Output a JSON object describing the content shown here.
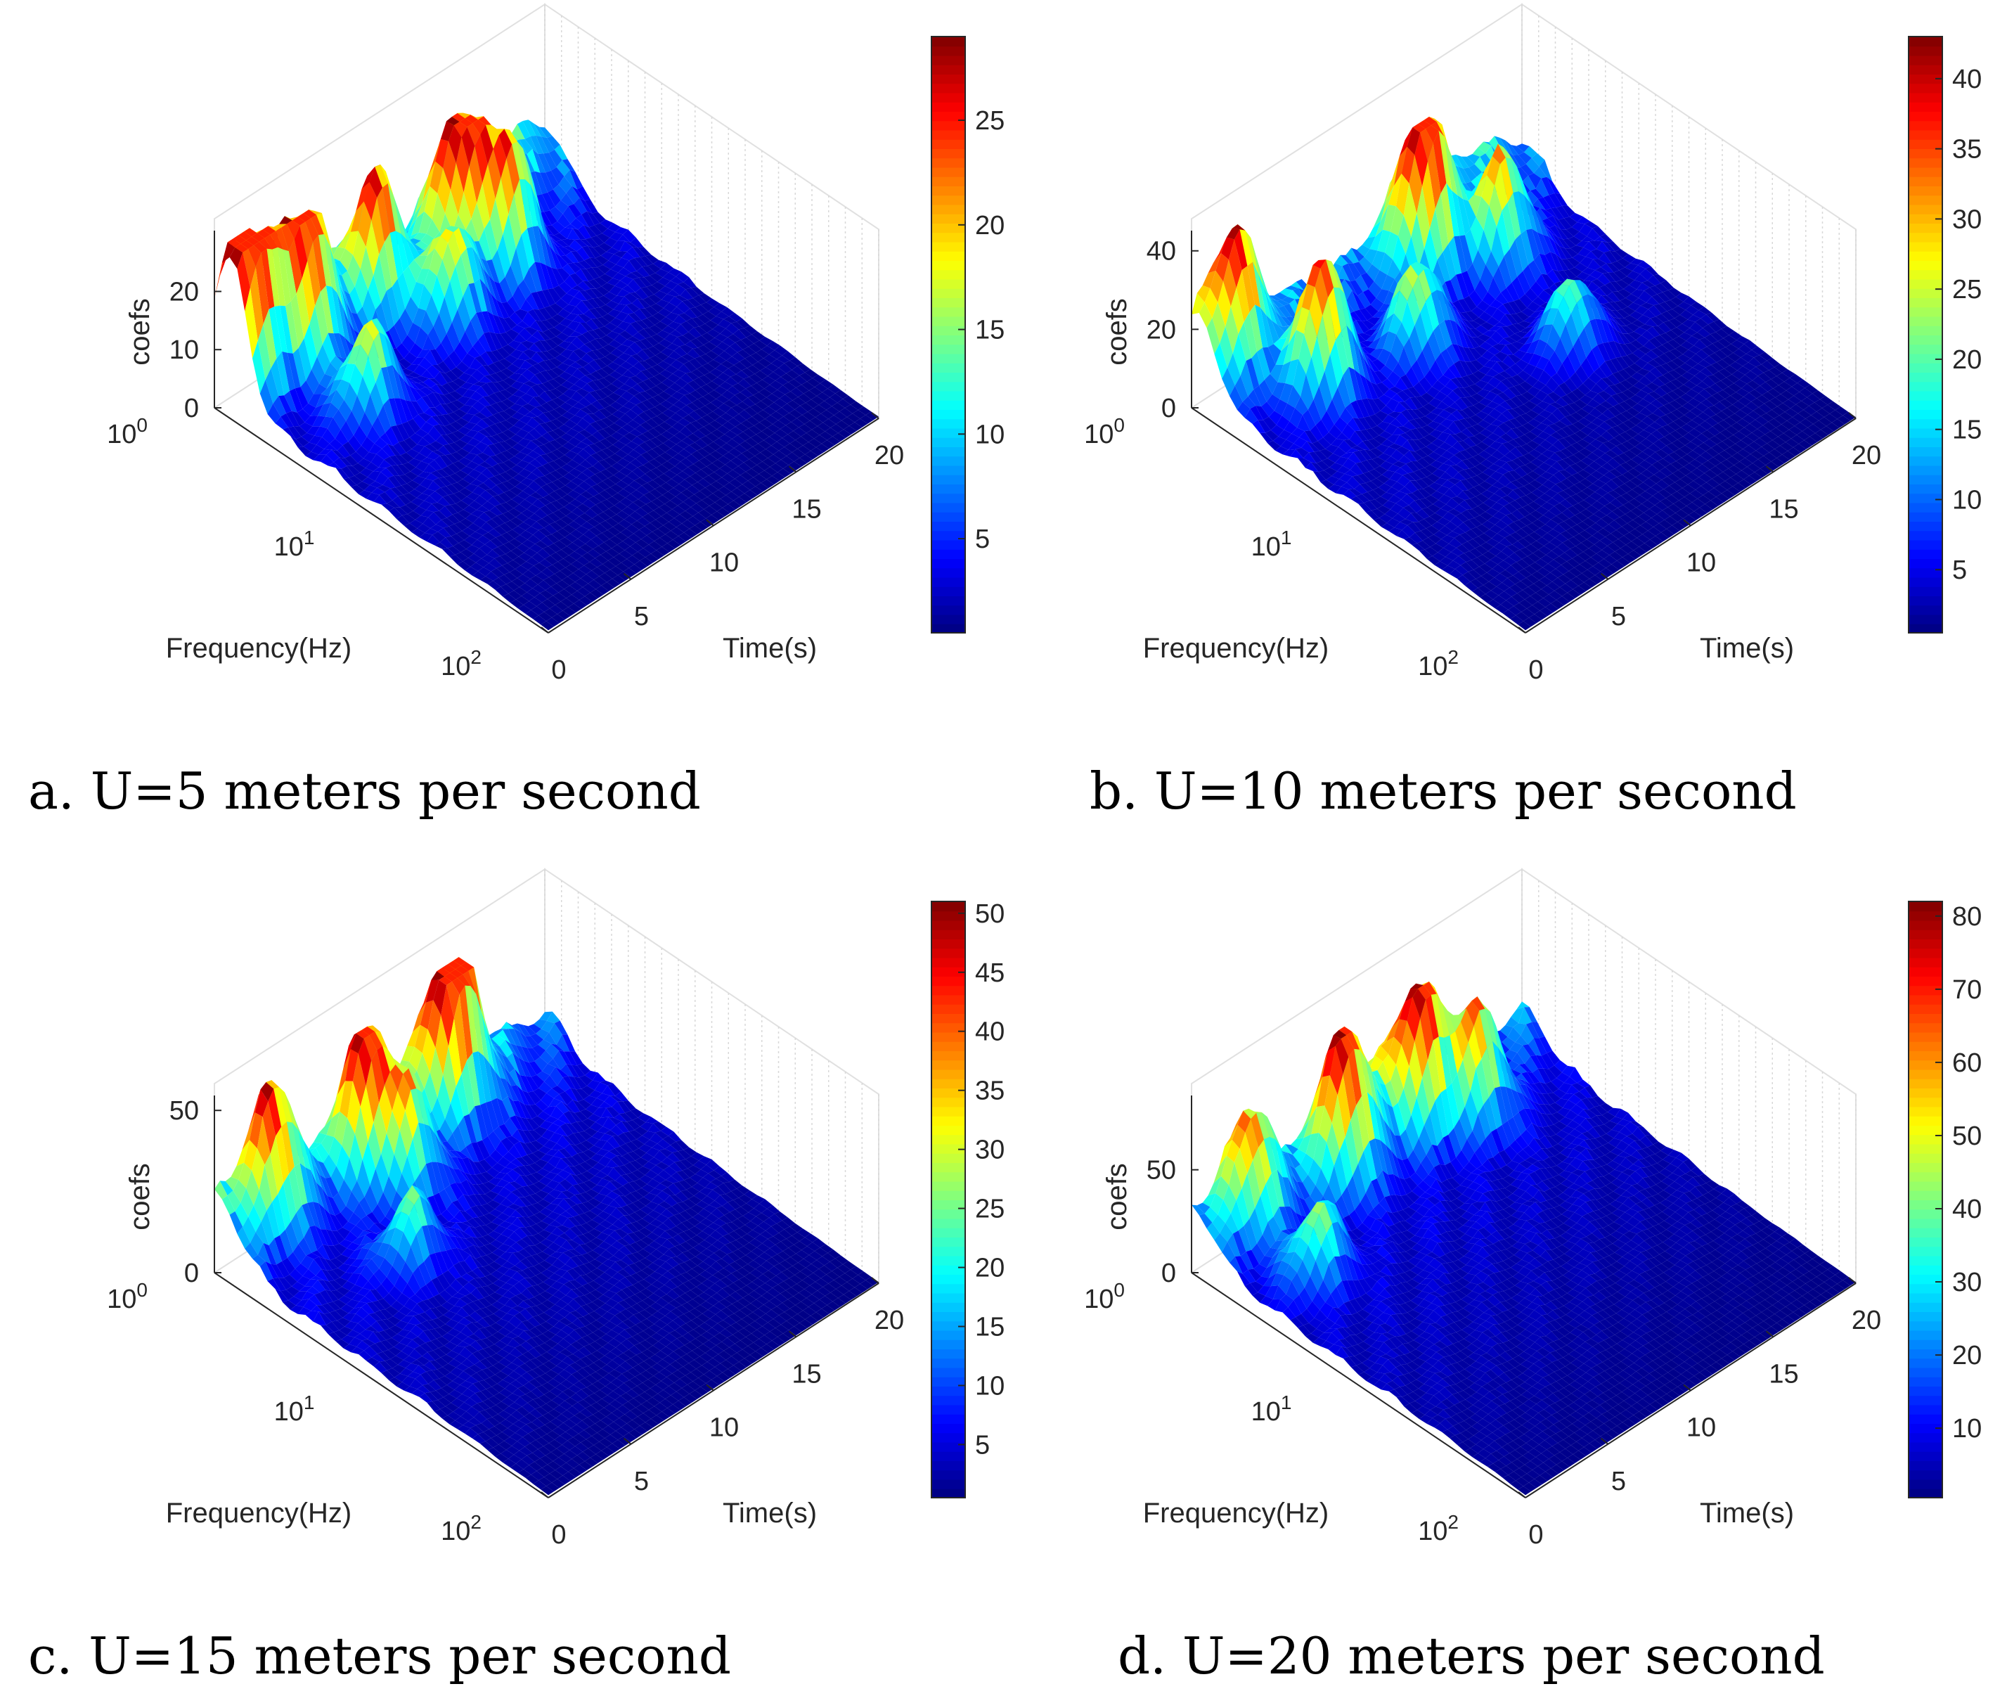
{
  "chart_data": [
    {
      "type": "surface3d",
      "caption": "a. U=5 meters per second",
      "xlabel": "Frequency(Hz)",
      "ylabel": "Time(s)",
      "zlabel": "coefs",
      "x_scale": "log",
      "x_ticks": [
        {
          "base": "10",
          "exp": "0"
        },
        {
          "base": "10",
          "exp": "1"
        },
        {
          "base": "10",
          "exp": "2"
        }
      ],
      "y_ticks": [
        "0",
        "5",
        "10",
        "15",
        "20"
      ],
      "z_ticks": [
        "0",
        "10",
        "20"
      ],
      "zlim": [
        0,
        29
      ],
      "colorbar": {
        "ticks": [
          "5",
          "10",
          "15",
          "20",
          "25"
        ],
        "range": [
          0.5,
          29
        ]
      },
      "peaks": [
        {
          "f": 1.3,
          "t": 1.0,
          "v": 28
        },
        {
          "f": 1.5,
          "t": 4.0,
          "v": 24
        },
        {
          "f": 1.4,
          "t": 8.5,
          "v": 22
        },
        {
          "f": 1.5,
          "t": 13.0,
          "v": 26
        },
        {
          "f": 2.2,
          "t": 14.5,
          "v": 24
        },
        {
          "f": 3.5,
          "t": 4.0,
          "v": 16
        },
        {
          "f": 2.5,
          "t": 10.5,
          "v": 18
        }
      ]
    },
    {
      "type": "surface3d",
      "caption": "b. U=10 meters per second",
      "xlabel": "Frequency(Hz)",
      "ylabel": "Time(s)",
      "zlabel": "coefs",
      "x_scale": "log",
      "x_ticks": [
        {
          "base": "10",
          "exp": "0"
        },
        {
          "base": "10",
          "exp": "1"
        },
        {
          "base": "10",
          "exp": "2"
        }
      ],
      "y_ticks": [
        "0",
        "5",
        "10",
        "15",
        "20"
      ],
      "z_ticks": [
        "0",
        "20",
        "40"
      ],
      "zlim": [
        0,
        43
      ],
      "colorbar": {
        "ticks": [
          "5",
          "10",
          "15",
          "20",
          "25",
          "30",
          "35",
          "40"
        ],
        "range": [
          0.5,
          43
        ]
      },
      "peaks": [
        {
          "f": 1.2,
          "t": 2.0,
          "v": 24
        },
        {
          "f": 2.5,
          "t": 4.0,
          "v": 36
        },
        {
          "f": 1.5,
          "t": 12.5,
          "v": 40
        },
        {
          "f": 2.2,
          "t": 15.5,
          "v": 30
        },
        {
          "f": 3.0,
          "t": 9.0,
          "v": 24
        },
        {
          "f": 8.0,
          "t": 14.0,
          "v": 22
        }
      ]
    },
    {
      "type": "surface3d",
      "caption": "c. U=15 meters per second",
      "xlabel": "Frequency(Hz)",
      "ylabel": "Time(s)",
      "zlabel": "coefs",
      "x_scale": "log",
      "x_ticks": [
        {
          "base": "10",
          "exp": "0"
        },
        {
          "base": "10",
          "exp": "1"
        },
        {
          "base": "10",
          "exp": "2"
        }
      ],
      "y_ticks": [
        "0",
        "5",
        "10",
        "15",
        "20"
      ],
      "z_ticks": [
        "0",
        "50"
      ],
      "zlim": [
        0,
        52
      ],
      "colorbar": {
        "ticks": [
          "5",
          "10",
          "15",
          "20",
          "25",
          "30",
          "35",
          "40",
          "45",
          "50"
        ],
        "range": [
          0.5,
          51
        ]
      },
      "peaks": [
        {
          "f": 1.2,
          "t": 3.0,
          "v": 36
        },
        {
          "f": 1.3,
          "t": 8.0,
          "v": 42
        },
        {
          "f": 1.3,
          "t": 13.5,
          "v": 50
        },
        {
          "f": 2.0,
          "t": 9.0,
          "v": 30
        },
        {
          "f": 4.0,
          "t": 6.0,
          "v": 22
        }
      ]
    },
    {
      "type": "surface3d",
      "caption": "d. U=20 meters per second",
      "xlabel": "Frequency(Hz)",
      "ylabel": "Time(s)",
      "zlabel": "coefs",
      "x_scale": "log",
      "x_ticks": [
        {
          "base": "10",
          "exp": "0"
        },
        {
          "base": "10",
          "exp": "1"
        },
        {
          "base": "10",
          "exp": "2"
        }
      ],
      "y_ticks": [
        "0",
        "5",
        "10",
        "15",
        "20"
      ],
      "z_ticks": [
        "0",
        "50"
      ],
      "zlim": [
        0,
        82
      ],
      "colorbar": {
        "ticks": [
          "10",
          "20",
          "30",
          "40",
          "50",
          "60",
          "70",
          "80"
        ],
        "range": [
          0.5,
          82
        ]
      },
      "peaks": [
        {
          "f": 1.2,
          "t": 3.0,
          "v": 50
        },
        {
          "f": 1.4,
          "t": 8.0,
          "v": 66
        },
        {
          "f": 1.4,
          "t": 12.5,
          "v": 60
        },
        {
          "f": 1.8,
          "t": 15.0,
          "v": 55
        },
        {
          "f": 3.0,
          "t": 3.0,
          "v": 38
        }
      ]
    }
  ]
}
